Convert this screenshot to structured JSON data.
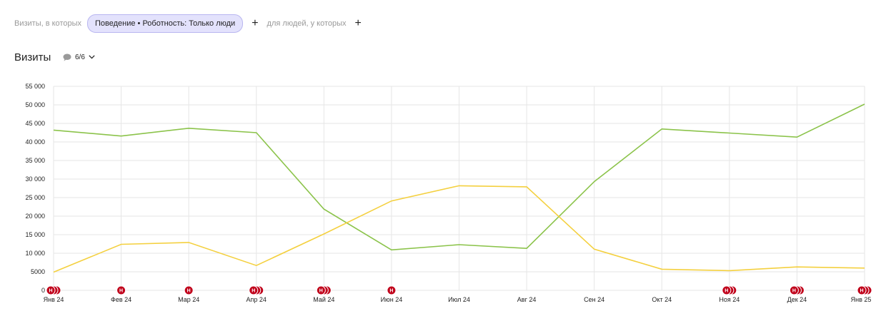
{
  "filters": {
    "visits_label": "Визиты, в которых",
    "chip_label": "Поведение • Роботность: Только люди",
    "people_label": "для людей, у которых",
    "plus": "+"
  },
  "chart_header": {
    "title": "Визиты",
    "annotations_count": "6/6"
  },
  "colors": {
    "series_green": "#8bc34a",
    "series_yellow": "#f4d03f",
    "annotation_red": "#c0001a",
    "grid": "#e6e6e6",
    "chip_bg": "#e3e2fc"
  },
  "chart_data": {
    "type": "line",
    "categories": [
      "Янв 24",
      "Фев 24",
      "Мар 24",
      "Апр 24",
      "Май 24",
      "Июн 24",
      "Июл 24",
      "Авг 24",
      "Сен 24",
      "Окт 24",
      "Ноя 24",
      "Дек 24",
      "Янв 25"
    ],
    "series": [
      {
        "color": "#8bc34a",
        "values": [
          43200,
          41600,
          43700,
          42500,
          21900,
          10900,
          12300,
          11300,
          29300,
          43500,
          42400,
          41300,
          50200
        ]
      },
      {
        "color": "#f4d03f",
        "values": [
          4900,
          12400,
          12900,
          6700,
          15200,
          24100,
          28200,
          27900,
          11100,
          5700,
          5300,
          6300,
          6000
        ]
      }
    ],
    "ylim": [
      0,
      55000
    ],
    "yticks": [
      "0",
      "5000",
      "10 000",
      "15 000",
      "20 000",
      "25 000",
      "30 000",
      "35 000",
      "40 000",
      "45 000",
      "50 000",
      "55 000"
    ],
    "ytick_values": [
      0,
      5000,
      10000,
      15000,
      20000,
      25000,
      30000,
      35000,
      40000,
      45000,
      50000,
      55000
    ],
    "grid": true,
    "annotations": [
      {
        "category": "Янв 24",
        "count": 3,
        "label": "Н"
      },
      {
        "category": "Фев 24",
        "count": 1,
        "label": "Н"
      },
      {
        "category": "Мар 24",
        "count": 1,
        "label": "Н"
      },
      {
        "category": "Апр 24",
        "count": 3,
        "label": "Н"
      },
      {
        "category": "Май 24",
        "count": 3,
        "label": "Н"
      },
      {
        "category": "Июн 24",
        "count": 1,
        "label": "Н"
      },
      {
        "category": "Ноя 24",
        "count": 3,
        "label": "Н"
      },
      {
        "category": "Дек 24",
        "count": 3,
        "label": "Н"
      },
      {
        "category": "Янв 25",
        "count": 3,
        "label": "Н"
      }
    ]
  }
}
